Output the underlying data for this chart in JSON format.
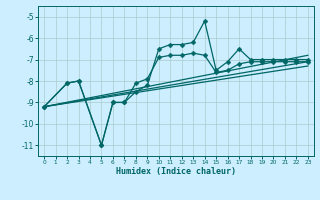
{
  "title": "",
  "xlabel": "Humidex (Indice chaleur)",
  "background_color": "#cceeff",
  "grid_color": "#aacccc",
  "line_color": "#006666",
  "xlim": [
    -0.5,
    23.5
  ],
  "ylim": [
    -11.5,
    -4.5
  ],
  "yticks": [
    -5,
    -6,
    -7,
    -8,
    -9,
    -10,
    -11
  ],
  "xticks": [
    0,
    1,
    2,
    3,
    4,
    5,
    6,
    7,
    8,
    9,
    10,
    11,
    12,
    13,
    14,
    15,
    16,
    17,
    18,
    19,
    20,
    21,
    22,
    23
  ],
  "series1_x": [
    0,
    2,
    3,
    5,
    6,
    7,
    8,
    9,
    10,
    11,
    12,
    13,
    14,
    15,
    16,
    17,
    18,
    19,
    20,
    21,
    22,
    23
  ],
  "series1_y": [
    -9.2,
    -8.1,
    -8.0,
    -11.0,
    -9.0,
    -9.0,
    -8.5,
    -8.2,
    -6.5,
    -6.3,
    -6.3,
    -6.2,
    -5.2,
    -7.5,
    -7.1,
    -6.5,
    -7.0,
    -7.0,
    -7.0,
    -7.0,
    -7.0,
    -7.0
  ],
  "series2_x": [
    0,
    2,
    3,
    5,
    6,
    7,
    8,
    9,
    10,
    11,
    12,
    13,
    14,
    15,
    16,
    17,
    18,
    19,
    20,
    21,
    22,
    23
  ],
  "series2_y": [
    -9.2,
    -8.1,
    -8.0,
    -11.0,
    -9.0,
    -9.0,
    -8.1,
    -7.9,
    -6.9,
    -6.8,
    -6.8,
    -6.7,
    -6.8,
    -7.6,
    -7.5,
    -7.2,
    -7.1,
    -7.1,
    -7.1,
    -7.1,
    -7.1,
    -7.1
  ],
  "line3_x": [
    0,
    23
  ],
  "line3_y": [
    -9.2,
    -6.8
  ],
  "line4_x": [
    0,
    23
  ],
  "line4_y": [
    -9.2,
    -7.1
  ],
  "line5_x": [
    0,
    23
  ],
  "line5_y": [
    -9.2,
    -7.3
  ]
}
